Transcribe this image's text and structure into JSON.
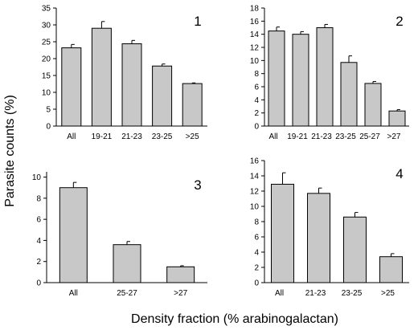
{
  "figure": {
    "ylabel": "Parasite counts (%)",
    "xlabel": "Density fraction (% arabinogalactan)"
  },
  "chart_data": [
    {
      "type": "bar",
      "panel_label": "1",
      "categories": [
        "All",
        "19-21",
        "21-23",
        "23-25",
        ">25"
      ],
      "values": [
        23.2,
        29.0,
        24.4,
        17.8,
        12.6
      ],
      "errors": [
        1.0,
        2.0,
        1.0,
        0.6,
        0.2
      ],
      "ylim": [
        0,
        35
      ],
      "yticks": [
        "0",
        "5",
        "10",
        "15",
        "20",
        "25",
        "30",
        "35"
      ],
      "bar_color": "#c8c8c8"
    },
    {
      "type": "bar",
      "panel_label": "2",
      "categories": [
        "All",
        "19-21",
        "21-23",
        "23-25",
        "25-27",
        ">27"
      ],
      "values": [
        14.5,
        14.0,
        15.0,
        9.7,
        6.5,
        2.3
      ],
      "errors": [
        0.6,
        0.4,
        0.5,
        1.0,
        0.3,
        0.2
      ],
      "ylim": [
        0,
        18
      ],
      "yticks": [
        "0",
        "2",
        "4",
        "6",
        "8",
        "10",
        "12",
        "14",
        "16",
        "18"
      ],
      "bar_color": "#c8c8c8"
    },
    {
      "type": "bar",
      "panel_label": "3",
      "categories": [
        "All",
        "25-27",
        ">27"
      ],
      "values": [
        9.0,
        3.6,
        1.5
      ],
      "errors": [
        0.5,
        0.3,
        0.1
      ],
      "ylim": [
        0,
        10.5
      ],
      "yticks": [
        "0",
        "2",
        "4",
        "6",
        "8",
        "10"
      ],
      "bar_color": "#c8c8c8"
    },
    {
      "type": "bar",
      "panel_label": "4",
      "categories": [
        "All",
        "21-23",
        "23-25",
        ">25"
      ],
      "values": [
        12.9,
        11.7,
        8.6,
        3.4
      ],
      "errors": [
        1.5,
        0.7,
        0.6,
        0.4
      ],
      "ylim": [
        0,
        16
      ],
      "yticks": [
        "0",
        "2",
        "4",
        "6",
        "8",
        "10",
        "12",
        "14",
        "16"
      ],
      "bar_color": "#c8c8c8"
    }
  ]
}
